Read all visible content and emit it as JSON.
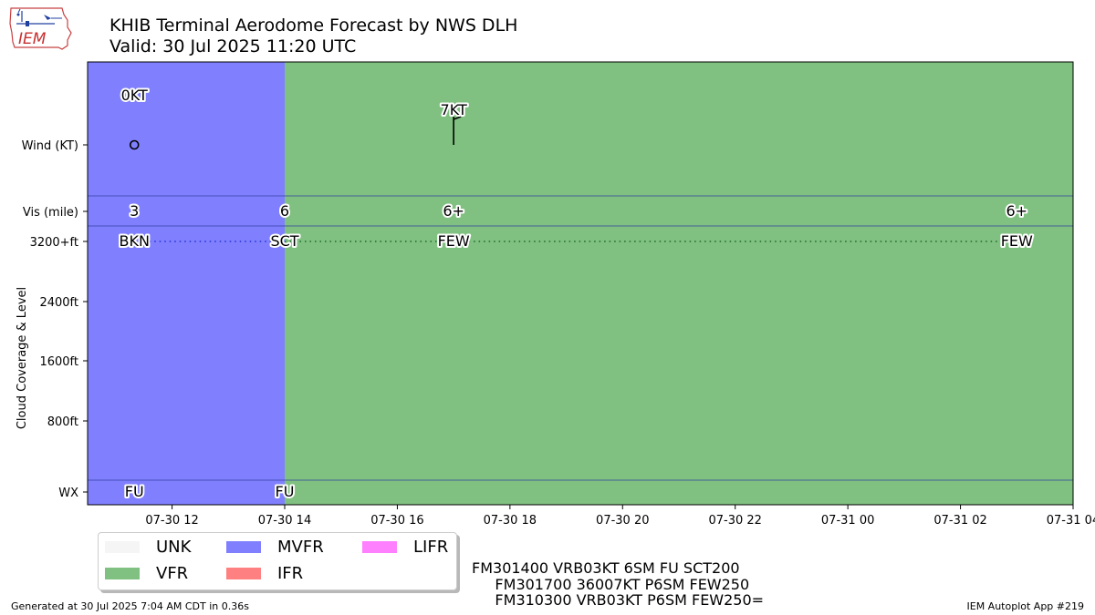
{
  "header": {
    "title": "KHIB Terminal Aerodome Forecast by NWS DLH",
    "subtitle": "Valid: 30 Jul 2025 11:20 UTC"
  },
  "logo": {
    "text": "IEM",
    "icon": "iowa-state-logo"
  },
  "chart_data": {
    "type": "timeline",
    "x_axis": {
      "start": "2025-07-30 10:30",
      "end": "2025-07-31 04:00",
      "ticks": [
        "07-30 12",
        "07-30 14",
        "07-30 16",
        "07-30 18",
        "07-30 20",
        "07-30 22",
        "07-31 00",
        "07-31 02",
        "07-31 04"
      ],
      "tick_hours": [
        12,
        14,
        16,
        18,
        20,
        22,
        24,
        26,
        28
      ]
    },
    "y_rows": {
      "wind_label": "Wind (KT)",
      "vis_label": "Vis (mile)",
      "cloud_axis_label": "Cloud Coverage & Level",
      "cloud_ticks": [
        "3200+ft",
        "2400ft",
        "1600ft",
        "800ft"
      ],
      "wx_label": "WX"
    },
    "flight_category_bands": [
      {
        "category": "MVFR",
        "start_hour": 10.5,
        "end_hour": 14.0,
        "color": "#8080ff"
      },
      {
        "category": "VFR",
        "start_hour": 14.0,
        "end_hour": 28.0,
        "color": "#80c080"
      }
    ],
    "forecast_points": [
      {
        "hour": 11.33,
        "wind": "0KT",
        "wind_speed": 0,
        "wind_dir": null,
        "vis": "3",
        "cloud": "BKN",
        "cloud_level": "3200+ft",
        "wx": "FU"
      },
      {
        "hour": 14.0,
        "wind": null,
        "vis": "6",
        "cloud": "SCT",
        "cloud_level": "3200+ft",
        "wx": "FU"
      },
      {
        "hour": 17.0,
        "wind": "7KT",
        "wind_speed": 7,
        "wind_dir": 360,
        "vis": "6+",
        "cloud": "FEW",
        "cloud_level": "3200+ft",
        "wx": null
      },
      {
        "hour": 27.0,
        "wind": null,
        "vis": "6+",
        "cloud": "FEW",
        "cloud_level": "3200+ft",
        "wx": null
      }
    ]
  },
  "legend": {
    "items": [
      {
        "label": "UNK",
        "color": "#f5f5f5"
      },
      {
        "label": "MVFR",
        "color": "#8080ff"
      },
      {
        "label": "LIFR",
        "color": "#ff80ff"
      },
      {
        "label": "VFR",
        "color": "#80c080"
      },
      {
        "label": "IFR",
        "color": "#ff8080"
      }
    ]
  },
  "taf_text": {
    "line1": "FM301400 VRB03KT 6SM FU SCT200",
    "line2": "     FM301700 36007KT P6SM FEW250",
    "line3": "     FM310300 VRB03KT P6SM FEW250="
  },
  "footer": {
    "generated": "Generated at 30 Jul 2025 7:04 AM CDT in 0.36s",
    "app": "IEM Autoplot App #219"
  }
}
